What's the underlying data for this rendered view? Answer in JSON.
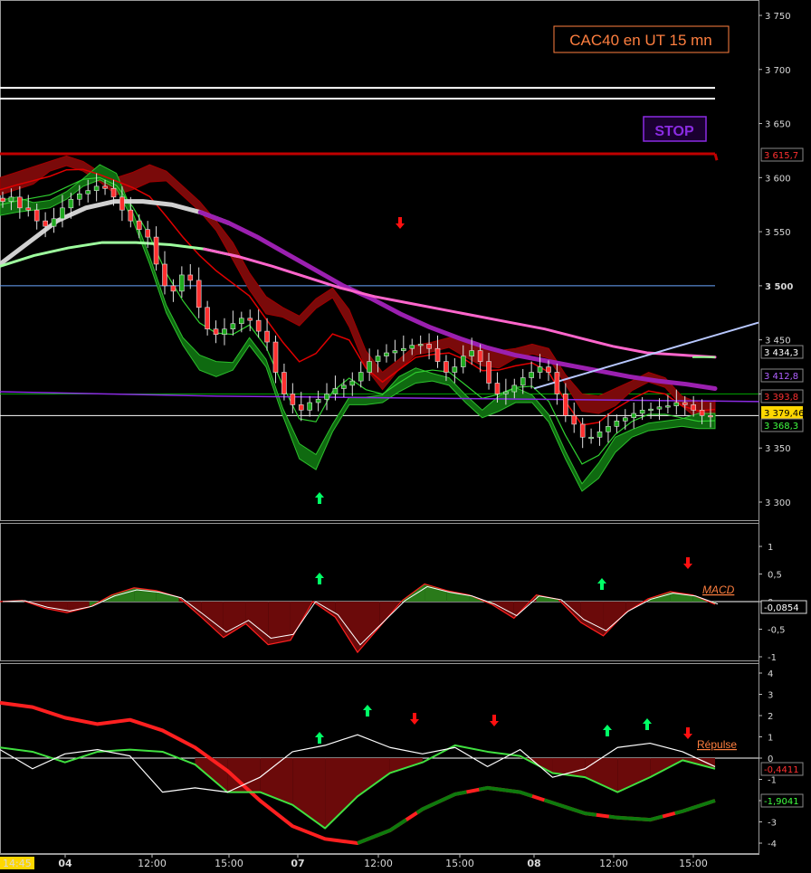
{
  "title": "CAC40 en UT 15 mn",
  "stop_label": "STOP",
  "colors": {
    "background": "#000000",
    "title": "#ff7f3f",
    "stop": "#8a2be2",
    "red_line": "#c00000",
    "purple_line": "#8a2be2",
    "pink_line": "#ff66cc",
    "blue_line": "#6aa6ff",
    "light_blue_line": "#b8c8ff",
    "green_line": "#00a000",
    "green_arrow": "#00ff66",
    "red_arrow": "#ff1010"
  },
  "chart_data": [
    {
      "type": "candlestick",
      "title": "CAC40 en UT 15 mn",
      "ylim": [
        3290,
        3770
      ],
      "y_ticks": [
        "3 300",
        "3 350",
        "3 400",
        "3 450",
        "3 500",
        "3 550",
        "3 600",
        "3 650",
        "3 700",
        "3 750"
      ],
      "price_tags": [
        {
          "label": "3 615,7",
          "value": 3615.7,
          "color": "#ff3030"
        },
        {
          "label": "3 434,3",
          "value": 3434.3,
          "color": "#ffffff"
        },
        {
          "label": "3 412,8",
          "value": 3412.8,
          "color": "#b060ff"
        },
        {
          "label": "3 393,8",
          "value": 3393.8,
          "color": "#ff3030"
        },
        {
          "label": "3 379,46",
          "value": 3379.46,
          "color": "#000000",
          "bg": "#ffd700"
        },
        {
          "label": "3 368,3",
          "value": 3368.3,
          "color": "#40ff40"
        }
      ],
      "horizontal_levels": [
        {
          "value": 3683,
          "color": "#ffffff"
        },
        {
          "value": 3673,
          "color": "#ffffff"
        },
        {
          "value": 3622,
          "color": "#c00000"
        },
        {
          "value": 3500,
          "color": "#6aa6ff"
        },
        {
          "value": 3400,
          "color": "#00a000"
        },
        {
          "value": 3380,
          "color": "#ffffff"
        }
      ],
      "close": [
        3578,
        3582,
        3572,
        3570,
        3560,
        3555,
        3562,
        3572,
        3580,
        3585,
        3588,
        3592,
        3590,
        3582,
        3570,
        3560,
        3552,
        3545,
        3520,
        3500,
        3495,
        3510,
        3505,
        3480,
        3460,
        3455,
        3460,
        3465,
        3470,
        3468,
        3458,
        3448,
        3420,
        3400,
        3390,
        3385,
        3392,
        3395,
        3400,
        3405,
        3408,
        3412,
        3420,
        3430,
        3435,
        3438,
        3440,
        3442,
        3445,
        3446,
        3442,
        3430,
        3420,
        3425,
        3435,
        3440,
        3430,
        3410,
        3400,
        3402,
        3408,
        3415,
        3420,
        3425,
        3420,
        3400,
        3380,
        3372,
        3360,
        3360,
        3365,
        3370,
        3375,
        3378,
        3382,
        3385,
        3386,
        3388,
        3389,
        3392,
        3390,
        3385,
        3380,
        3379
      ],
      "bands": {
        "upper": [
          3600,
          3605,
          3610,
          3615,
          3620,
          3615,
          3605,
          3600,
          3605,
          3612,
          3606,
          3592,
          3578,
          3560,
          3540,
          3512,
          3490,
          3480,
          3472,
          3488,
          3498,
          3478,
          3440,
          3420,
          3432,
          3445,
          3448,
          3452,
          3450,
          3442,
          3440,
          3442,
          3446,
          3442,
          3418,
          3400,
          3398,
          3405,
          3412,
          3420,
          3415,
          3398,
          3392,
          3394
        ],
        "lower": [
          3565,
          3568,
          3570,
          3572,
          3580,
          3592,
          3598,
          3590,
          3560,
          3520,
          3475,
          3445,
          3422,
          3416,
          3422,
          3445,
          3425,
          3380,
          3340,
          3330,
          3365,
          3390,
          3390,
          3392,
          3402,
          3410,
          3412,
          3408,
          3392,
          3378,
          3384,
          3392,
          3392,
          3374,
          3340,
          3310,
          3322,
          3346,
          3360,
          3366,
          3368,
          3370,
          3368,
          3368
        ]
      },
      "moving_averages": [
        {
          "color": "#ffffff",
          "values": [
            3520,
            3540,
            3560,
            3572,
            3578,
            3578,
            3575,
            3568,
            3558,
            3545,
            3530,
            3515,
            3500,
            3488,
            3474,
            3462,
            3452,
            3443,
            3436,
            3431,
            3426,
            3421,
            3416,
            3412,
            3409,
            3405
          ]
        },
        {
          "color": "#ff66cc",
          "values": [
            3518,
            3528,
            3535,
            3540,
            3540,
            3538,
            3534,
            3527,
            3518,
            3508,
            3498,
            3490,
            3484,
            3478,
            3472,
            3466,
            3460,
            3452,
            3444,
            3438,
            3436,
            3434
          ]
        },
        {
          "color": "#8a2be2",
          "values": [
            3402,
            3400,
            3398,
            3397,
            3396,
            3395,
            3394,
            3393
          ]
        }
      ]
    },
    {
      "type": "area",
      "title": "MACD",
      "ylim": [
        -1.15,
        1.2
      ],
      "y_ticks": [
        "1",
        "0,5",
        "0",
        "-0,5",
        "-1"
      ],
      "last_value_label": "-0,0854",
      "values": [
        0.0,
        0.02,
        -0.12,
        -0.2,
        -0.1,
        0.12,
        0.25,
        0.2,
        0.08,
        -0.28,
        -0.65,
        -0.4,
        -0.78,
        -0.7,
        0.0,
        -0.28,
        -0.92,
        -0.45,
        0.02,
        0.32,
        0.2,
        0.12,
        -0.05,
        -0.3,
        0.12,
        0.04,
        -0.38,
        -0.62,
        -0.2,
        0.05,
        0.18,
        0.12,
        -0.05
      ]
    },
    {
      "type": "line",
      "title": "Répulse",
      "ylim": [
        -4.2,
        4.2
      ],
      "y_ticks": [
        "4",
        "3",
        "2",
        "1",
        "0",
        "-1",
        "-2",
        "-3",
        "-4"
      ],
      "last_value_labels": [
        "-0,4411",
        "-1,9041"
      ],
      "series": [
        {
          "color": "#ff2020",
          "values": [
            2.6,
            2.4,
            1.9,
            1.6,
            1.8,
            1.3,
            0.5,
            -0.6,
            -2.0,
            -3.2,
            -3.8,
            -4.0,
            -3.4,
            -2.4,
            -1.7,
            -1.4,
            -1.6,
            -2.1,
            -2.6,
            -2.8,
            -2.9,
            -2.5,
            -2.0
          ]
        },
        {
          "color": "#40e040",
          "values": [
            0.5,
            0.3,
            -0.2,
            0.3,
            0.4,
            0.3,
            -0.3,
            -1.6,
            -1.6,
            -2.2,
            -3.3,
            -1.8,
            -0.7,
            -0.2,
            0.6,
            0.3,
            0.1,
            -0.7,
            -0.9,
            -1.6,
            -0.9,
            -0.1,
            -0.5
          ]
        },
        {
          "color": "#ffffff",
          "values": [
            0.4,
            -0.5,
            0.2,
            0.4,
            0.1,
            -1.6,
            -1.4,
            -1.6,
            -0.9,
            0.3,
            0.6,
            1.1,
            0.5,
            0.2,
            0.5,
            -0.4,
            0.4,
            -0.9,
            -0.5,
            0.5,
            0.7,
            0.3,
            -0.4
          ]
        }
      ]
    }
  ],
  "x_axis": {
    "ticks": [
      {
        "label": "14:45",
        "bold": false,
        "highlight": true
      },
      {
        "label": "04",
        "bold": true
      },
      {
        "label": "12:00",
        "bold": false
      },
      {
        "label": "15:00",
        "bold": false
      },
      {
        "label": "07",
        "bold": true
      },
      {
        "label": "12:00",
        "bold": false
      },
      {
        "label": "15:00",
        "bold": false
      },
      {
        "label": "08",
        "bold": true
      },
      {
        "label": "12:00",
        "bold": false
      },
      {
        "label": "15:00",
        "bold": false
      }
    ]
  },
  "signals": [
    {
      "pane": "price",
      "dir": "down",
      "color": "#ff1010"
    },
    {
      "pane": "price",
      "dir": "up",
      "color": "#00ff66"
    },
    {
      "pane": "macd",
      "dir": "up",
      "color": "#00ff66"
    },
    {
      "pane": "macd",
      "dir": "up",
      "color": "#00ff66"
    },
    {
      "pane": "macd",
      "dir": "down",
      "color": "#ff1010"
    },
    {
      "pane": "repulse",
      "dir": "up",
      "color": "#00ff66"
    },
    {
      "pane": "repulse",
      "dir": "up",
      "color": "#00ff66"
    },
    {
      "pane": "repulse",
      "dir": "down",
      "color": "#ff1010"
    },
    {
      "pane": "repulse",
      "dir": "down",
      "color": "#ff1010"
    },
    {
      "pane": "repulse",
      "dir": "up",
      "color": "#00ff66"
    },
    {
      "pane": "repulse",
      "dir": "up",
      "color": "#00ff66"
    },
    {
      "pane": "repulse",
      "dir": "down",
      "color": "#ff1010"
    }
  ]
}
